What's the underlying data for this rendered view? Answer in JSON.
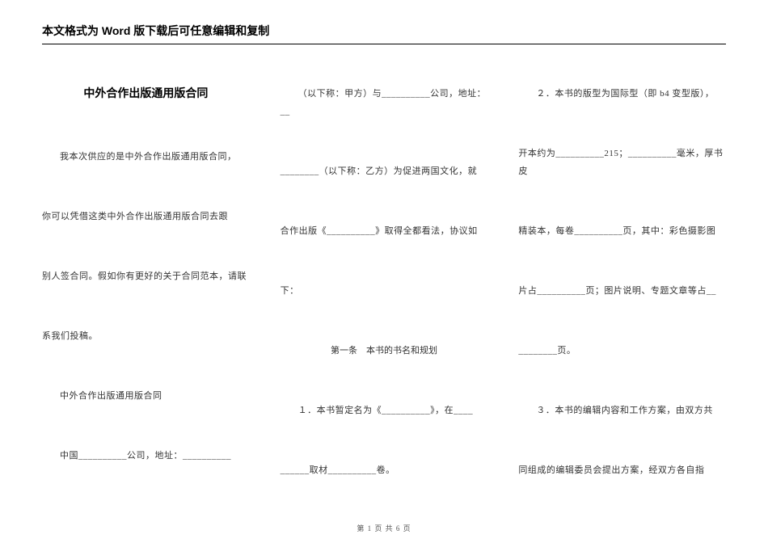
{
  "header": "本文格式为 Word 版下载后可任意编辑和复制",
  "title": "中外合作出版通用版合同",
  "col1": {
    "p1": "我本次供应的是中外合作出版通用版合同，",
    "p2": "你可以凭借这类中外合作出版通用版合同去跟",
    "p3": "别人签合同。假如你有更好的关于合同范本，请联",
    "p4": "系我们投稿。",
    "p5": "中外合作出版通用版合同",
    "p6": "中国__________公司，地址：__________"
  },
  "col2": {
    "p1": "（以下称：甲方）与__________公司，地址：__",
    "p2": "________（以下称：乙方）为促进两国文化，就",
    "p3": "合作出版《__________》取得全都看法，协议如",
    "p4": "下：",
    "section": "第一条　本书的书名和规划",
    "p5": "１．本书暂定名为《__________》，在____",
    "p6": "______取材__________卷。"
  },
  "col3": {
    "p1": "２．本书的版型为国际型（即 b4 变型版），",
    "p2": "开本约为__________215；__________毫米，厚书皮",
    "p3": "精装本，每卷__________页，其中：彩色摄影图",
    "p4": "片占__________页；图片说明、专题文章等占__",
    "p5": "________页。",
    "p6": "３．本书的编辑内容和工作方案，由双方共",
    "p7": "同组成的编辑委员会提出方案，经双方各自指"
  },
  "footer": "第 1 页 共 6 页"
}
